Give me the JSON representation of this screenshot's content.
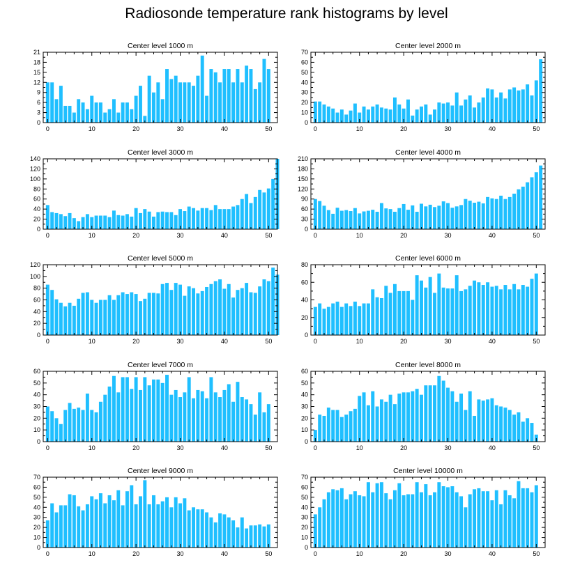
{
  "title": "Radiosonde temperature rank histograms by level",
  "bar_color": "#1fbfff",
  "chart_data": [
    {
      "type": "bar",
      "title": "Center level 1000 m",
      "xlabel": "",
      "ylabel": "",
      "xlim": [
        -1,
        52
      ],
      "xticks": [
        0,
        10,
        20,
        30,
        40,
        50
      ],
      "ylim": [
        0,
        21
      ],
      "yticks": [
        0,
        3,
        6,
        9,
        12,
        15,
        18,
        21
      ],
      "values": [
        12,
        12,
        7,
        11,
        5,
        5,
        3,
        7,
        6,
        4,
        8,
        6,
        6,
        3,
        4,
        7,
        3,
        6,
        6,
        4,
        8,
        11,
        2,
        14,
        9,
        12,
        7,
        16,
        13,
        14,
        12,
        12,
        12,
        11,
        14,
        20,
        8,
        16,
        15,
        12,
        16,
        16,
        12,
        16,
        12,
        17,
        16,
        10,
        12,
        19,
        16
      ]
    },
    {
      "type": "bar",
      "title": "Center level 2000 m",
      "xlabel": "",
      "ylabel": "",
      "xlim": [
        -1,
        52
      ],
      "xticks": [
        0,
        10,
        20,
        30,
        40,
        50
      ],
      "ylim": [
        0,
        70
      ],
      "yticks": [
        0,
        10,
        20,
        30,
        40,
        50,
        60,
        70
      ],
      "values": [
        21,
        21,
        18,
        16,
        14,
        10,
        13,
        8,
        12,
        19,
        10,
        16,
        13,
        16,
        18,
        15,
        14,
        13,
        25,
        18,
        14,
        23,
        7,
        13,
        16,
        18,
        8,
        13,
        20,
        19,
        20,
        17,
        30,
        17,
        23,
        27,
        15,
        20,
        25,
        34,
        33,
        25,
        30,
        24,
        33,
        35,
        32,
        33,
        38,
        27,
        42,
        63
      ]
    },
    {
      "type": "bar",
      "title": "Center level 3000 m",
      "xlabel": "",
      "ylabel": "",
      "xlim": [
        -1,
        52
      ],
      "xticks": [
        0,
        10,
        20,
        30,
        40,
        50
      ],
      "ylim": [
        0,
        140
      ],
      "yticks": [
        0,
        20,
        40,
        60,
        80,
        100,
        120,
        140
      ],
      "values": [
        48,
        34,
        32,
        30,
        26,
        32,
        22,
        16,
        24,
        30,
        24,
        27,
        27,
        27,
        24,
        37,
        28,
        27,
        30,
        25,
        42,
        32,
        40,
        35,
        25,
        34,
        35,
        34,
        34,
        28,
        40,
        36,
        45,
        42,
        37,
        42,
        42,
        38,
        48,
        40,
        40,
        40,
        45,
        48,
        60,
        70,
        52,
        64,
        78,
        73,
        81,
        100,
        140
      ]
    },
    {
      "type": "bar",
      "title": "Center level 4000 m",
      "xlabel": "",
      "ylabel": "",
      "xlim": [
        -1,
        52
      ],
      "xticks": [
        0,
        10,
        20,
        30,
        40,
        50
      ],
      "ylim": [
        0,
        210
      ],
      "yticks": [
        0,
        30,
        60,
        90,
        120,
        150,
        180,
        210
      ],
      "values": [
        90,
        84,
        70,
        57,
        46,
        64,
        55,
        57,
        54,
        63,
        47,
        53,
        55,
        58,
        52,
        78,
        62,
        60,
        52,
        63,
        75,
        58,
        71,
        52,
        76,
        68,
        73,
        66,
        70,
        83,
        78,
        64,
        68,
        72,
        90,
        85,
        79,
        82,
        77,
        96,
        92,
        90,
        100,
        90,
        96,
        106,
        119,
        127,
        140,
        155,
        170,
        190
      ]
    },
    {
      "type": "bar",
      "title": "Center level 5000 m",
      "xlabel": "",
      "ylabel": "",
      "xlim": [
        -1,
        52
      ],
      "xticks": [
        0,
        10,
        20,
        30,
        40,
        50
      ],
      "ylim": [
        0,
        120
      ],
      "yticks": [
        0,
        20,
        40,
        60,
        80,
        100,
        120
      ],
      "values": [
        86,
        77,
        61,
        55,
        49,
        55,
        50,
        62,
        72,
        73,
        60,
        55,
        60,
        60,
        68,
        60,
        68,
        73,
        70,
        73,
        70,
        58,
        62,
        72,
        72,
        71,
        87,
        89,
        77,
        89,
        86,
        67,
        83,
        80,
        71,
        75,
        82,
        87,
        92,
        95,
        79,
        87,
        64,
        77,
        80,
        89,
        73,
        72,
        83,
        95,
        92,
        115,
        103
      ]
    },
    {
      "type": "bar",
      "title": "Center level 6000 m",
      "xlabel": "",
      "ylabel": "",
      "xlim": [
        -1,
        52
      ],
      "xticks": [
        0,
        10,
        20,
        30,
        40,
        50
      ],
      "ylim": [
        0,
        80
      ],
      "yticks": [
        0,
        20,
        40,
        60,
        80
      ],
      "values": [
        32,
        36,
        30,
        32,
        36,
        38,
        32,
        36,
        33,
        38,
        33,
        36,
        36,
        52,
        43,
        42,
        56,
        48,
        58,
        50,
        50,
        50,
        40,
        68,
        62,
        54,
        66,
        48,
        70,
        54,
        53,
        53,
        68,
        50,
        52,
        56,
        62,
        60,
        57,
        60,
        55,
        56,
        52,
        57,
        52,
        58,
        52,
        57,
        55,
        64,
        70
      ]
    },
    {
      "type": "bar",
      "title": "Center level 7000 m",
      "xlabel": "",
      "ylabel": "",
      "xlim": [
        -1,
        52
      ],
      "xticks": [
        0,
        10,
        20,
        30,
        40,
        50
      ],
      "ylim": [
        0,
        60
      ],
      "yticks": [
        0,
        10,
        20,
        30,
        40,
        50,
        60
      ],
      "values": [
        30,
        26,
        20,
        15,
        27,
        33,
        28,
        29,
        27,
        41,
        27,
        25,
        34,
        40,
        47,
        56,
        42,
        55,
        55,
        45,
        55,
        44,
        55,
        48,
        53,
        53,
        50,
        57,
        40,
        44,
        38,
        42,
        55,
        37,
        44,
        43,
        37,
        55,
        42,
        38,
        44,
        49,
        34,
        51,
        38,
        36,
        32,
        23,
        42,
        25,
        32
      ]
    },
    {
      "type": "bar",
      "title": "Center level 8000 m",
      "xlabel": "",
      "ylabel": "",
      "xlim": [
        -1,
        52
      ],
      "xticks": [
        0,
        10,
        20,
        30,
        40,
        50
      ],
      "ylim": [
        0,
        60
      ],
      "yticks": [
        0,
        10,
        20,
        30,
        40,
        50,
        60
      ],
      "values": [
        10,
        23,
        22,
        29,
        27,
        27,
        21,
        23,
        26,
        28,
        39,
        42,
        31,
        43,
        30,
        36,
        34,
        40,
        32,
        41,
        42,
        42,
        43,
        45,
        40,
        48,
        48,
        48,
        56,
        52,
        46,
        43,
        34,
        41,
        27,
        43,
        22,
        36,
        35,
        36,
        37,
        31,
        30,
        29,
        27,
        23,
        25,
        17,
        20,
        16,
        6
      ]
    },
    {
      "type": "bar",
      "title": "Center level 9000 m",
      "xlabel": "",
      "ylabel": "",
      "xlim": [
        -1,
        52
      ],
      "xticks": [
        0,
        10,
        20,
        30,
        40,
        50
      ],
      "ylim": [
        0,
        70
      ],
      "yticks": [
        0,
        10,
        20,
        30,
        40,
        50,
        60,
        70
      ],
      "values": [
        27,
        44,
        35,
        42,
        42,
        53,
        52,
        41,
        37,
        43,
        51,
        48,
        54,
        44,
        52,
        47,
        57,
        42,
        56,
        62,
        43,
        51,
        67,
        43,
        52,
        43,
        46,
        50,
        40,
        50,
        44,
        49,
        37,
        40,
        38,
        38,
        35,
        30,
        25,
        34,
        33,
        30,
        27,
        20,
        30,
        19,
        22,
        22,
        23,
        21,
        23
      ]
    },
    {
      "type": "bar",
      "title": "Center level 10000 m",
      "xlabel": "",
      "ylabel": "",
      "xlim": [
        -1,
        52
      ],
      "xticks": [
        0,
        10,
        20,
        30,
        40,
        50
      ],
      "ylim": [
        0,
        70
      ],
      "yticks": [
        0,
        10,
        20,
        30,
        40,
        50,
        60,
        70
      ],
      "values": [
        33,
        40,
        48,
        55,
        58,
        57,
        59,
        48,
        53,
        56,
        52,
        51,
        65,
        55,
        64,
        65,
        54,
        48,
        57,
        64,
        52,
        53,
        53,
        65,
        55,
        63,
        52,
        55,
        65,
        61,
        60,
        61,
        55,
        51,
        40,
        53,
        58,
        59,
        56,
        56,
        47,
        57,
        43,
        57,
        52,
        49,
        66,
        59,
        59,
        55,
        62
      ]
    }
  ]
}
